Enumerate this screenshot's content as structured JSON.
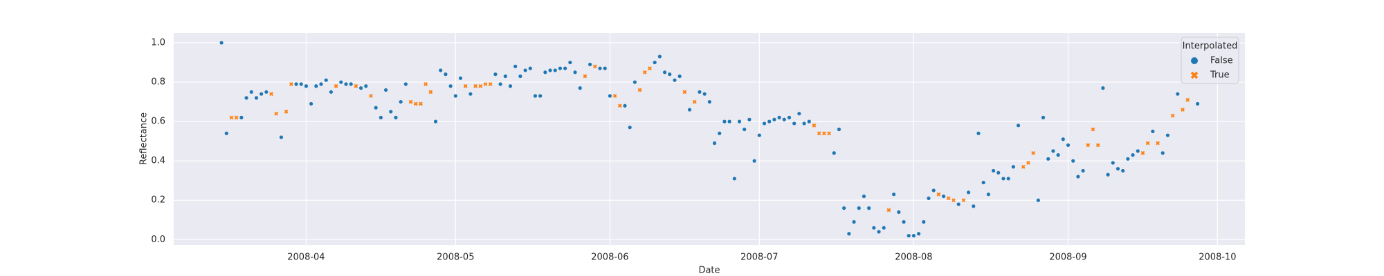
{
  "chart_data": {
    "type": "scatter",
    "x_label": "Date",
    "y_label": "Reflectance",
    "legend_title": "Interpolated",
    "legend_position": "upper right",
    "grid": true,
    "xlim": [
      64.4,
      279.5
    ],
    "ylim": [
      -0.027,
      1.049
    ],
    "xticks": [
      {
        "value": 91,
        "label": "2008-04"
      },
      {
        "value": 121,
        "label": "2008-05"
      },
      {
        "value": 152,
        "label": "2008-06"
      },
      {
        "value": 182,
        "label": "2008-07"
      },
      {
        "value": 213,
        "label": "2008-08"
      },
      {
        "value": 244,
        "label": "2008-09"
      },
      {
        "value": 274,
        "label": "2008-10"
      }
    ],
    "yticks": [
      {
        "value": 0,
        "label": "0.0"
      },
      {
        "value": 0.2,
        "label": "0.2"
      },
      {
        "value": 0.4,
        "label": "0.4"
      },
      {
        "value": 0.6,
        "label": "0.6"
      },
      {
        "value": 0.8,
        "label": "0.8"
      },
      {
        "value": 1,
        "label": "1.0"
      }
    ],
    "series": [
      {
        "name": "False",
        "color": "#1f77b4",
        "marker": "circle",
        "x": [
          74,
          75,
          78,
          79,
          80,
          81,
          82,
          83,
          86,
          89,
          90,
          91,
          92,
          93,
          94,
          95,
          96,
          98,
          99,
          100,
          102,
          103,
          105,
          106,
          107,
          108,
          109,
          110,
          111,
          117,
          118,
          119,
          120,
          121,
          122,
          124,
          129,
          130,
          131,
          132,
          133,
          134,
          135,
          136,
          137,
          138,
          139,
          140,
          141,
          142,
          143,
          144,
          145,
          146,
          148,
          150,
          151,
          152,
          155,
          156,
          157,
          161,
          162,
          163,
          164,
          165,
          166,
          168,
          170,
          171,
          172,
          173,
          174,
          175,
          176,
          177,
          178,
          179,
          180,
          181,
          182,
          183,
          184,
          185,
          186,
          187,
          188,
          189,
          190,
          191,
          192,
          197,
          198,
          199,
          200,
          201,
          202,
          203,
          204,
          205,
          206,
          207,
          209,
          210,
          211,
          212,
          213,
          214,
          215,
          216,
          217,
          219,
          222,
          224,
          225,
          226,
          227,
          228,
          229,
          230,
          231,
          232,
          233,
          234,
          238,
          239,
          240,
          241,
          242,
          243,
          244,
          245,
          246,
          247,
          251,
          252,
          253,
          254,
          255,
          256,
          257,
          258,
          261,
          263,
          264,
          266,
          270
        ],
        "values": [
          1.0,
          0.54,
          0.62,
          0.72,
          0.75,
          0.72,
          0.74,
          0.75,
          0.52,
          0.79,
          0.79,
          0.78,
          0.69,
          0.78,
          0.79,
          0.81,
          0.75,
          0.8,
          0.79,
          0.79,
          0.77,
          0.78,
          0.67,
          0.62,
          0.76,
          0.65,
          0.62,
          0.7,
          0.79,
          0.6,
          0.86,
          0.84,
          0.78,
          0.73,
          0.82,
          0.74,
          0.84,
          0.79,
          0.83,
          0.78,
          0.88,
          0.83,
          0.86,
          0.87,
          0.73,
          0.73,
          0.85,
          0.86,
          0.86,
          0.87,
          0.87,
          0.9,
          0.85,
          0.77,
          0.89,
          0.87,
          0.87,
          0.73,
          0.68,
          0.57,
          0.8,
          0.9,
          0.93,
          0.85,
          0.84,
          0.81,
          0.83,
          0.66,
          0.75,
          0.74,
          0.7,
          0.49,
          0.54,
          0.6,
          0.6,
          0.31,
          0.6,
          0.56,
          0.61,
          0.4,
          0.53,
          0.59,
          0.6,
          0.61,
          0.62,
          0.61,
          0.62,
          0.59,
          0.64,
          0.59,
          0.6,
          0.44,
          0.56,
          0.16,
          0.03,
          0.09,
          0.16,
          0.22,
          0.16,
          0.06,
          0.04,
          0.06,
          0.23,
          0.14,
          0.09,
          0.02,
          0.02,
          0.03,
          0.09,
          0.21,
          0.25,
          0.22,
          0.18,
          0.24,
          0.17,
          0.54,
          0.29,
          0.23,
          0.35,
          0.34,
          0.31,
          0.31,
          0.37,
          0.58,
          0.2,
          0.62,
          0.41,
          0.45,
          0.43,
          0.51,
          0.48,
          0.4,
          0.32,
          0.35,
          0.77,
          0.33,
          0.39,
          0.36,
          0.35,
          0.41,
          0.43,
          0.45,
          0.55,
          0.44,
          0.53,
          0.74,
          0.69
        ]
      },
      {
        "name": "True",
        "color": "#ff7f0e",
        "marker": "x",
        "x": [
          76,
          77,
          84,
          85,
          87,
          88,
          97,
          101,
          104,
          112,
          113,
          114,
          115,
          116,
          123,
          125,
          126,
          127,
          128,
          147,
          149,
          153,
          154,
          158,
          159,
          160,
          167,
          169,
          193,
          194,
          195,
          196,
          208,
          218,
          220,
          221,
          223,
          235,
          236,
          237,
          248,
          249,
          250,
          259,
          260,
          262,
          265,
          267,
          268
        ],
        "values": [
          0.62,
          0.62,
          0.74,
          0.64,
          0.65,
          0.79,
          0.78,
          0.78,
          0.73,
          0.7,
          0.69,
          0.69,
          0.79,
          0.75,
          0.78,
          0.78,
          0.78,
          0.79,
          0.79,
          0.83,
          0.88,
          0.73,
          0.68,
          0.76,
          0.85,
          0.87,
          0.75,
          0.7,
          0.58,
          0.54,
          0.54,
          0.54,
          0.15,
          0.23,
          0.21,
          0.2,
          0.2,
          0.37,
          0.39,
          0.44,
          0.48,
          0.56,
          0.48,
          0.44,
          0.49,
          0.49,
          0.63,
          0.66,
          0.71
        ]
      }
    ]
  }
}
